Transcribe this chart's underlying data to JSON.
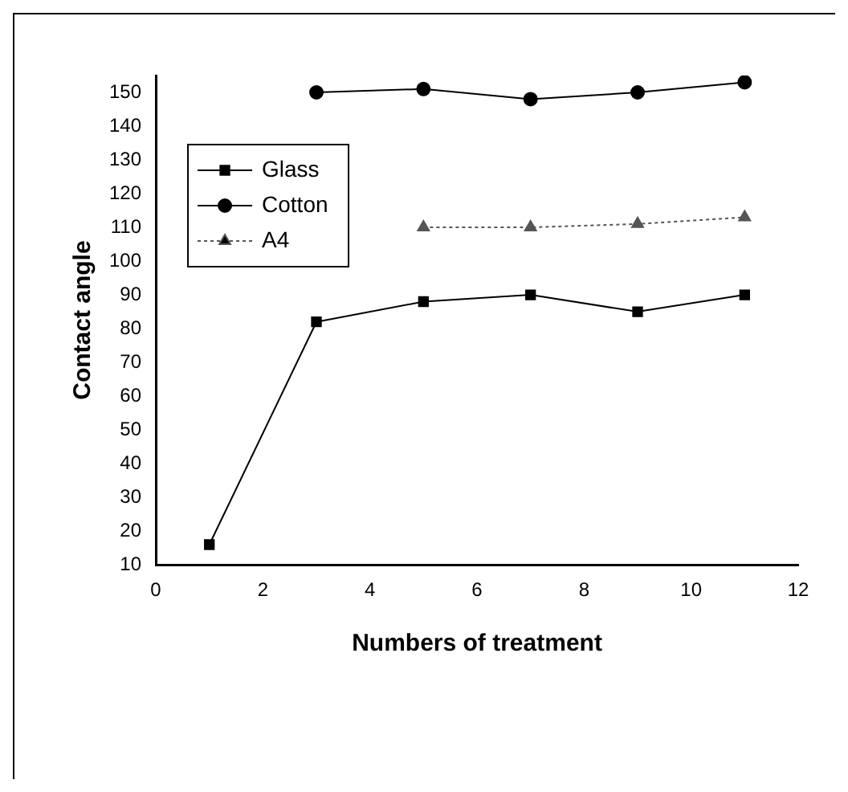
{
  "chart_data": {
    "type": "line",
    "xlabel": "Numbers of treatment",
    "ylabel": "Contact angle",
    "xlim": [
      0,
      12
    ],
    "xticks": [
      0,
      2,
      4,
      6,
      8,
      10,
      12
    ],
    "ylim": [
      10,
      155
    ],
    "yticks": [
      10,
      20,
      30,
      40,
      50,
      60,
      70,
      80,
      90,
      100,
      110,
      120,
      130,
      140,
      150
    ],
    "legend": "top left",
    "series": [
      {
        "name": "Glass",
        "color": "#000000",
        "marker": "square",
        "line_style": "solid",
        "x": [
          1,
          3,
          5,
          7,
          9,
          11
        ],
        "values": [
          16,
          82,
          88,
          90,
          85,
          90
        ]
      },
      {
        "name": "Cotton",
        "color": "#000000",
        "marker": "circle",
        "line_style": "solid",
        "x": [
          3,
          5,
          7,
          9,
          11
        ],
        "values": [
          150,
          151,
          148,
          150,
          153
        ]
      },
      {
        "name": "A4",
        "color": "#555555",
        "marker": "triangle",
        "line_style": "dotted",
        "x": [
          5,
          7,
          9,
          11
        ],
        "values": [
          110,
          110,
          111,
          113
        ]
      }
    ]
  }
}
